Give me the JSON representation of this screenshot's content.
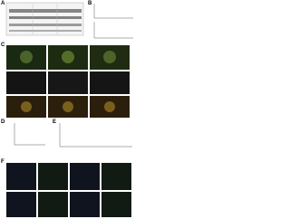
{
  "panels": {
    "a": "A",
    "b": "B",
    "c": "C",
    "d": "D",
    "e": "E",
    "f": "F"
  }
}
